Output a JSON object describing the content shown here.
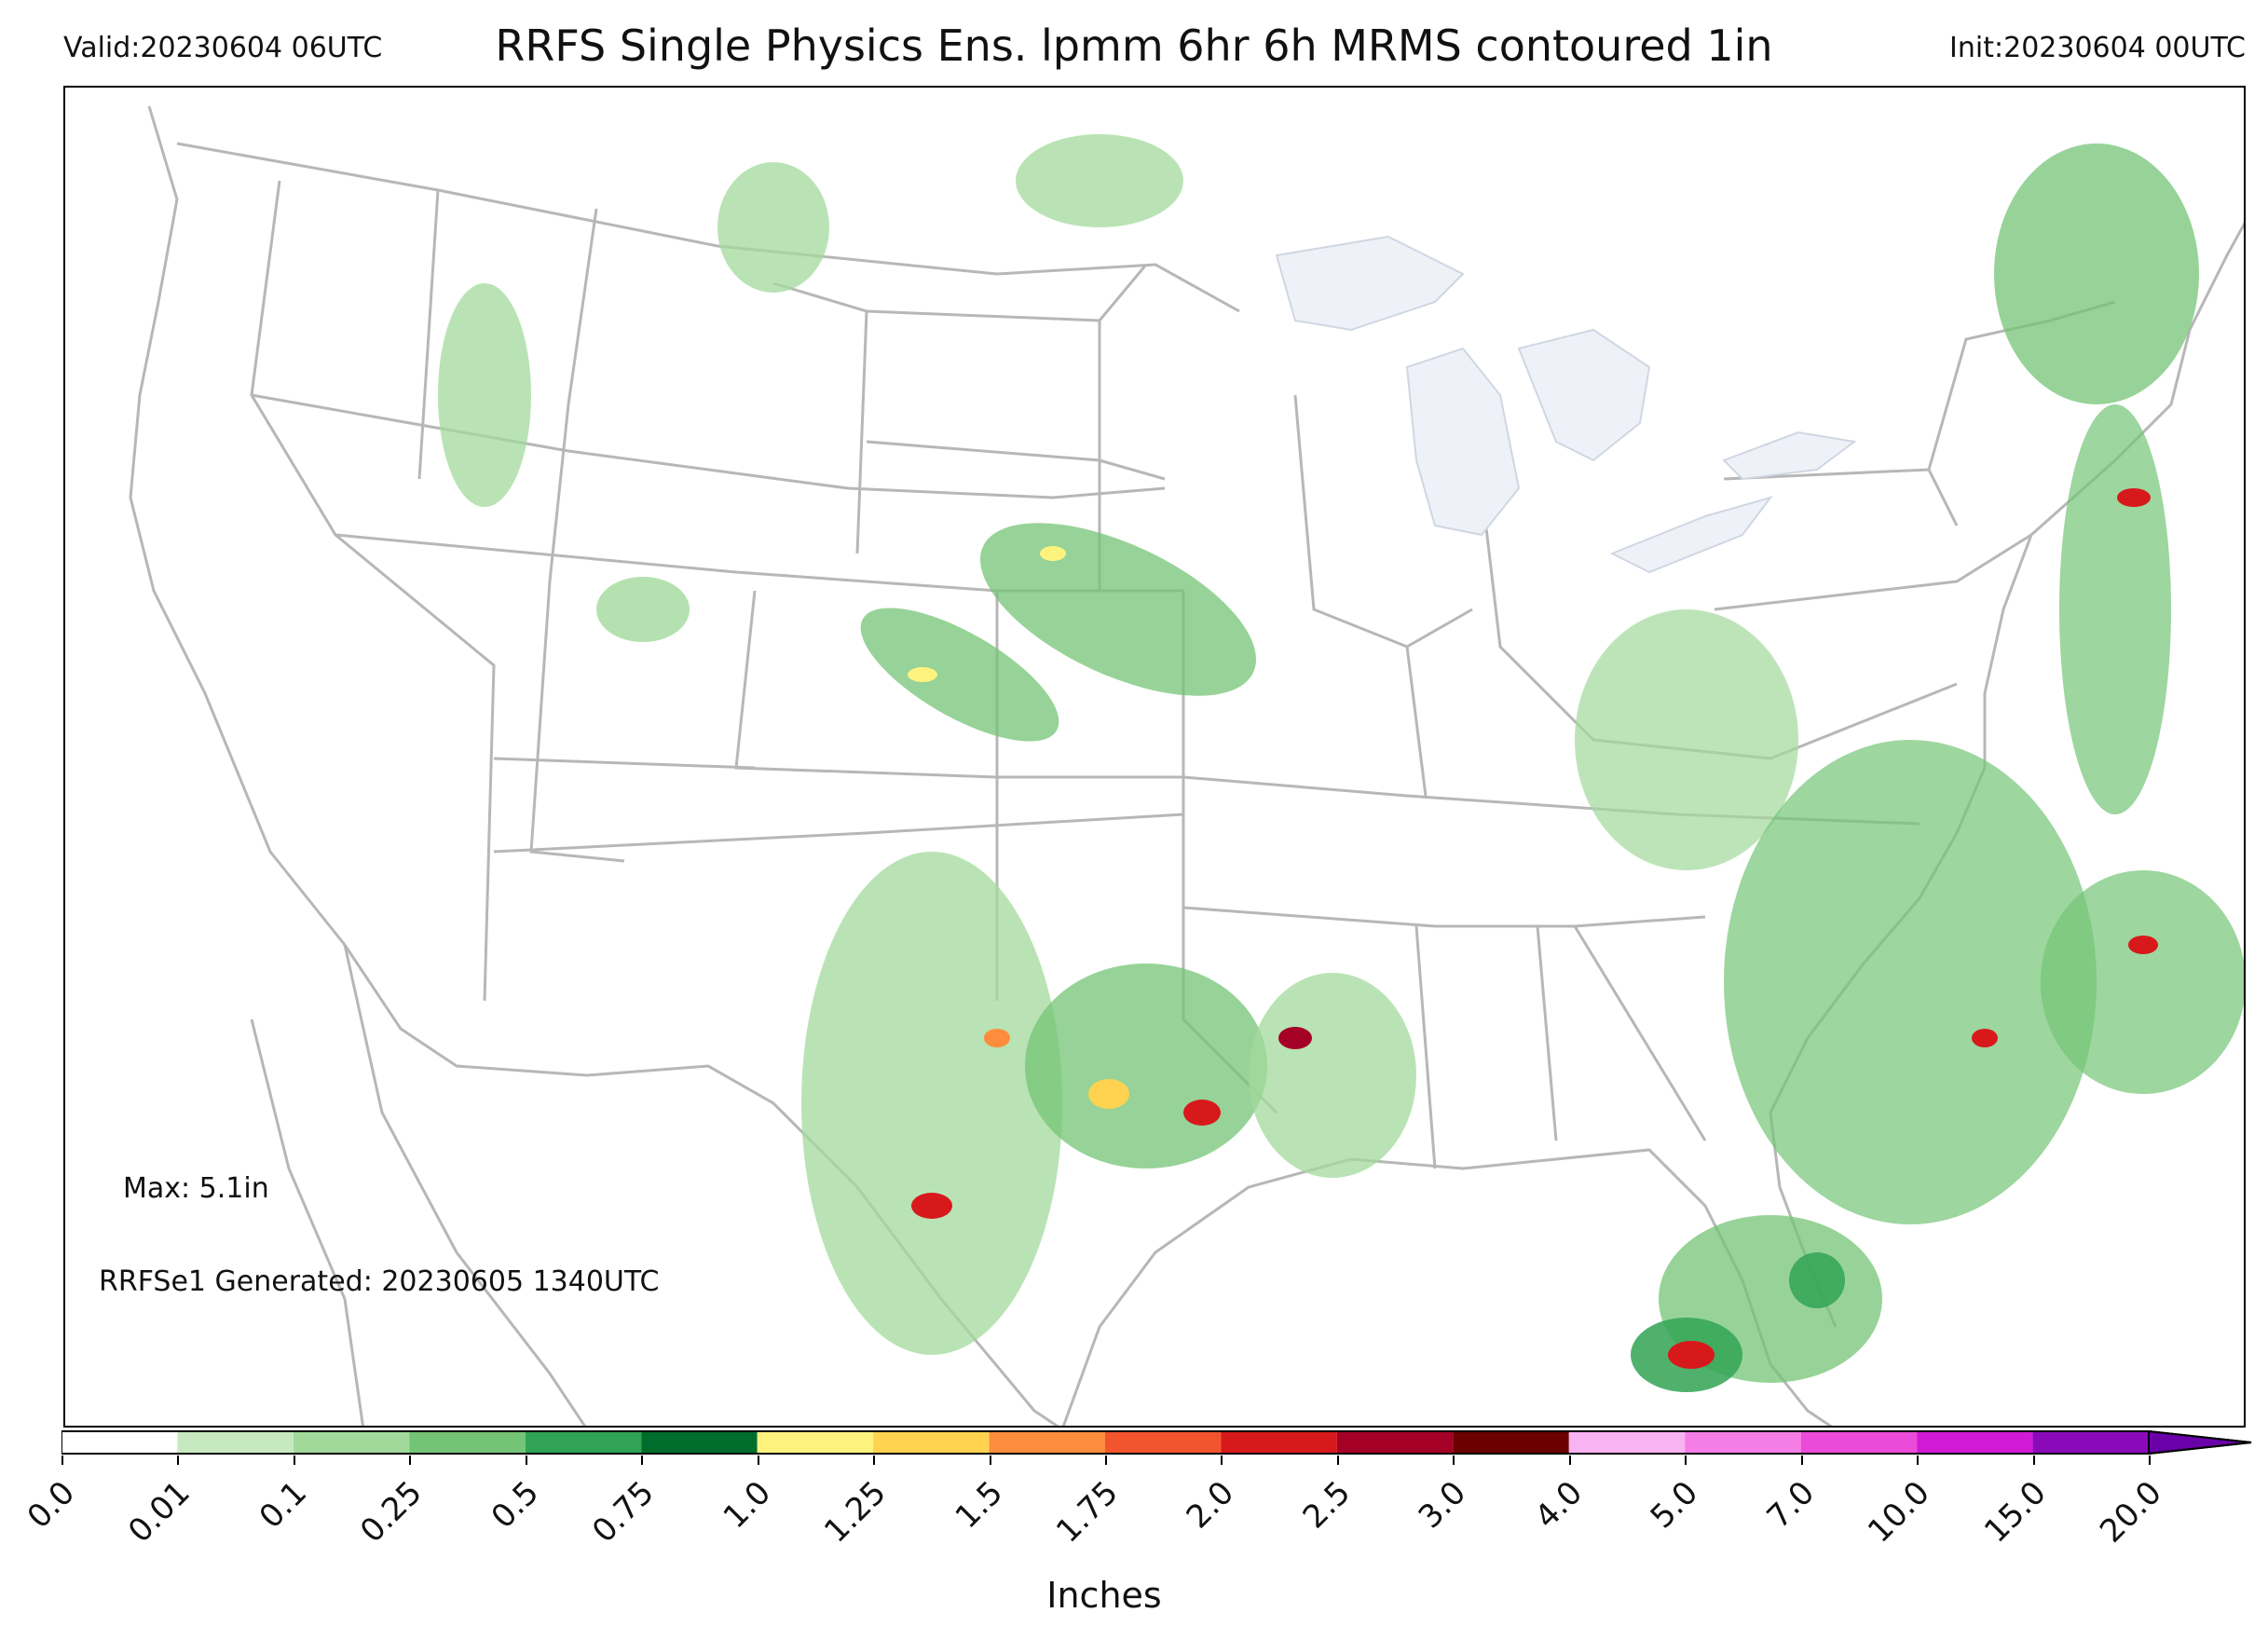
{
  "header": {
    "valid": "Valid:20230604 06UTC",
    "title": "RRFS Single Physics Ens. lpmm 6hr 6h MRMS contoured 1in",
    "init": "Init:20230604 00UTC"
  },
  "annotations": {
    "max": "Max: 5.1in",
    "generated": "RRFSe1 Generated: 20230605 1340UTC"
  },
  "colorbar": {
    "label": "Inches",
    "ticks": [
      "0.0",
      "0.01",
      "0.1",
      "0.25",
      "0.5",
      "0.75",
      "1.0",
      "1.25",
      "1.5",
      "1.75",
      "2.0",
      "2.5",
      "3.0",
      "4.0",
      "5.0",
      "7.0",
      "10.0",
      "15.0",
      "20.0"
    ],
    "colors": [
      "#ffffff",
      "#c7e9c0",
      "#a1d99b",
      "#74c476",
      "#31a354",
      "#006d2c",
      "#fff380",
      "#ffd34f",
      "#fd8d3c",
      "#f2542d",
      "#d7191c",
      "#a50026",
      "#6b0000",
      "#f8b3f2",
      "#f57ee6",
      "#ec4ad9",
      "#d11ad6",
      "#8a0aba"
    ],
    "extend_color": "#6a00a8"
  },
  "map": {
    "land_border_color": "#b3b3b3",
    "lake_fill": "#eef2f8",
    "contour_color": "#2a3fd6",
    "region": "CONUS"
  }
}
